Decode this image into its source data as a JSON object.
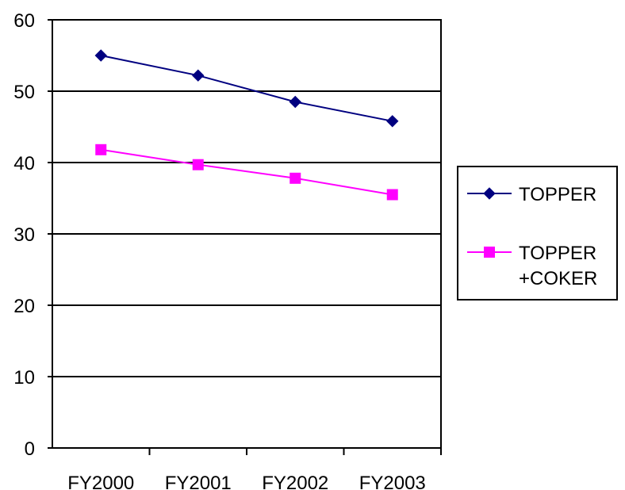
{
  "chart_data": {
    "type": "line",
    "title": "",
    "xlabel": "",
    "ylabel": "",
    "categories": [
      "FY2000",
      "FY2001",
      "FY2002",
      "FY2003"
    ],
    "ylim": [
      0,
      60
    ],
    "yticks": [
      0,
      10,
      20,
      30,
      40,
      50,
      60
    ],
    "grid": "horizontal",
    "legend_position": "right",
    "series": [
      {
        "name": "TOPPER",
        "values": [
          55.0,
          52.2,
          48.5,
          45.8
        ],
        "color": "#000080",
        "marker": "diamond"
      },
      {
        "name": "TOPPER +COKER",
        "name_lines": [
          "TOPPER",
          "+COKER"
        ],
        "values": [
          41.8,
          39.7,
          37.8,
          35.5
        ],
        "color": "#ff00ff",
        "marker": "square"
      }
    ]
  }
}
